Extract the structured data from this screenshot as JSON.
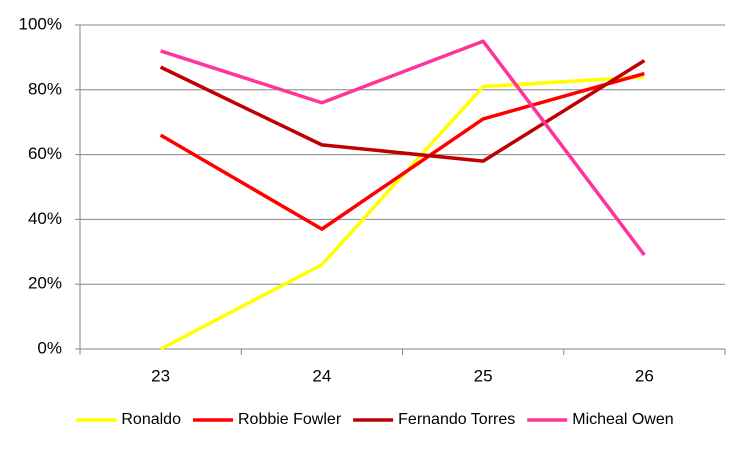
{
  "chart_data": {
    "type": "line",
    "categories": [
      "23",
      "24",
      "25",
      "26"
    ],
    "series": [
      {
        "name": "Ronaldo",
        "color": "#ffff00",
        "values": [
          0,
          26,
          81,
          84
        ]
      },
      {
        "name": "Robbie Fowler",
        "color": "#ff0000",
        "values": [
          66,
          37,
          71,
          85
        ]
      },
      {
        "name": "Fernando Torres",
        "color": "#c00000",
        "values": [
          87,
          63,
          58,
          89
        ]
      },
      {
        "name": "Micheal Owen",
        "color": "#ff3399",
        "values": [
          92,
          76,
          95,
          29
        ]
      }
    ],
    "ylim": [
      0,
      100
    ],
    "yticks": [
      {
        "value": 0,
        "label": "0%"
      },
      {
        "value": 20,
        "label": "20%"
      },
      {
        "value": 40,
        "label": "40%"
      },
      {
        "value": 60,
        "label": "60%"
      },
      {
        "value": 80,
        "label": "80%"
      },
      {
        "value": 100,
        "label": "100%"
      }
    ],
    "grid": true,
    "legend": "bottom"
  }
}
